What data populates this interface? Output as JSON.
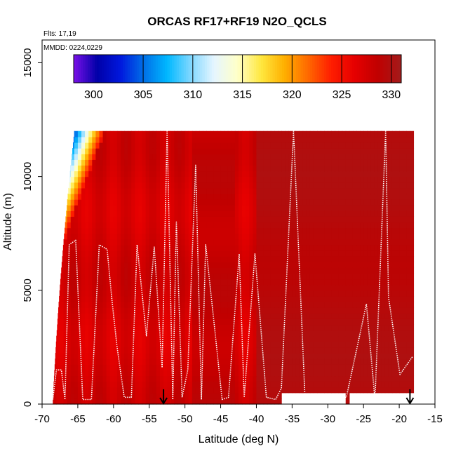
{
  "chart_data": {
    "type": "heatmap",
    "title": "ORCAS RF17+RF19 N2O_QCLS",
    "xlabel": "Latitude (deg N)",
    "ylabel": "Altitude (m)",
    "xlim": [
      -70,
      -15
    ],
    "ylim": [
      0,
      16000
    ],
    "x_ticks": [
      -70,
      -65,
      -60,
      -55,
      -50,
      -45,
      -40,
      -35,
      -30,
      -25,
      -20,
      -15
    ],
    "x_tick_labels": [
      "-70",
      "-65",
      "-60",
      "-55",
      "-50",
      "-45",
      "-40",
      "-35",
      "-30",
      "-25",
      "-20",
      "-15"
    ],
    "y_ticks": [
      0,
      5000,
      10000,
      15000
    ],
    "y_tick_labels": [
      "0",
      "5000",
      "10000",
      "15000"
    ],
    "flights_note": "Flts: 17,19",
    "date_note": "MMDD: 0224,0229",
    "colorbar": {
      "range": [
        298,
        331
      ],
      "ticks": [
        300,
        305,
        310,
        315,
        320,
        325,
        330
      ],
      "tick_labels": [
        "300",
        "305",
        "310",
        "315",
        "320",
        "325",
        "330"
      ],
      "colors": [
        "#7a10e8",
        "#0000a8",
        "#0018dd",
        "#0070e8",
        "#00b8ff",
        "#80d8ff",
        "#e6f6ff",
        "#ffffc8",
        "#ffe840",
        "#ffb000",
        "#ff6a00",
        "#ff1e00",
        "#e60000",
        "#c00000",
        "#a31b1b"
      ]
    },
    "field": {
      "x_range": [
        -68.5,
        -18
      ],
      "y_range": [
        0,
        12000
      ],
      "background_value": 329,
      "stratosphere_top_value": 300,
      "southern_tropopause_altitude": 8000
    },
    "flight_track": [
      [
        -68.5,
        200
      ],
      [
        -68,
        1500
      ],
      [
        -67.3,
        1500
      ],
      [
        -66.8,
        200
      ],
      [
        -66.2,
        7000
      ],
      [
        -65.3,
        7200
      ],
      [
        -64.3,
        200
      ],
      [
        -63.1,
        200
      ],
      [
        -62.0,
        7000
      ],
      [
        -60.9,
        6800
      ],
      [
        -60.2,
        4500
      ],
      [
        -59.5,
        2500
      ],
      [
        -58.5,
        300
      ],
      [
        -57.5,
        300
      ],
      [
        -56.7,
        7000
      ],
      [
        -55.4,
        3000
      ],
      [
        -54.3,
        6900
      ],
      [
        -53.2,
        1600
      ],
      [
        -52.5,
        12000
      ],
      [
        -51.7,
        200
      ],
      [
        -51.2,
        8000
      ],
      [
        -50.4,
        300
      ],
      [
        -49.6,
        1500
      ],
      [
        -48.5,
        10500
      ],
      [
        -47.7,
        200
      ],
      [
        -47.1,
        7000
      ],
      [
        -45.8,
        3200
      ],
      [
        -44.8,
        200
      ],
      [
        -43.9,
        300
      ],
      [
        -42.4,
        6600
      ],
      [
        -41.7,
        300
      ],
      [
        -40.2,
        6600
      ],
      [
        -38.6,
        300
      ],
      [
        -37.3,
        200
      ],
      [
        -36.5,
        700
      ],
      [
        -34.8,
        12000
      ],
      [
        -33.2,
        300
      ],
      [
        -27.4,
        300
      ],
      [
        -24.6,
        4400
      ],
      [
        -23.4,
        200
      ],
      [
        -21.9,
        12000
      ],
      [
        -21.5,
        4700
      ],
      [
        -19.9,
        1300
      ],
      [
        -18.1,
        2100
      ]
    ],
    "sounding_markers": [
      -53,
      -18.5
    ]
  }
}
